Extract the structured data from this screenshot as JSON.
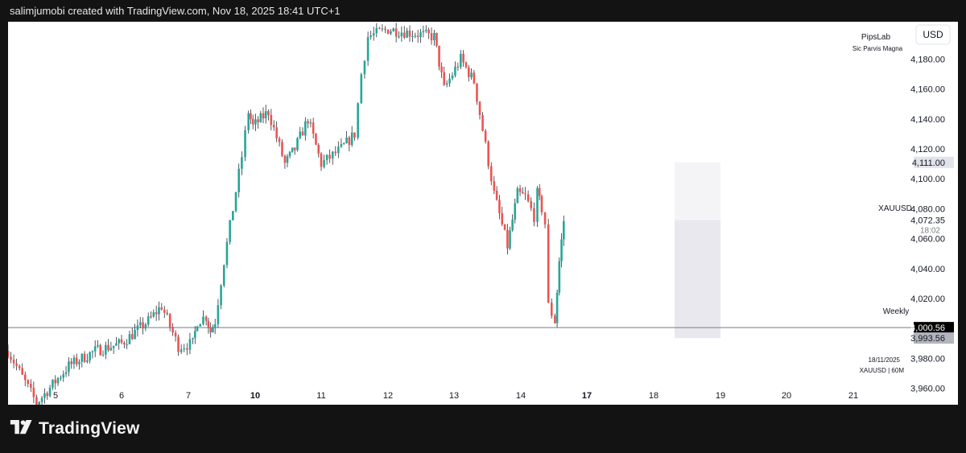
{
  "header": {
    "attribution": "salimjumobi created with TradingView.com, Nov 18, 2025 18:41 UTC+1"
  },
  "branding": {
    "logo_icon": "tradingview-logo-icon",
    "wordmark": "TradingView"
  },
  "watermark": {
    "name": "PipsLab",
    "slogan": "Sic Parvis Magna"
  },
  "currency_button": "USD",
  "symbol_label": "XAUUSD",
  "footer_info": {
    "date": "18/11/2025",
    "symbol_timeframe": "XAUUSD | 60M"
  },
  "colors": {
    "up": "#26a69a",
    "down": "#ef5350",
    "wick": "#2a2e39",
    "level": "#787b86",
    "box": "#e8e8ee"
  },
  "chart_data": {
    "type": "candlestick",
    "symbol": "XAUUSD",
    "timeframe": "60M",
    "y_axis": {
      "min": 3949,
      "max": 4205,
      "ticks": [
        4180,
        4160,
        4140,
        4120,
        4100,
        4080,
        4060,
        4040,
        4020,
        3980,
        3960
      ],
      "tick_labels": [
        "4,180.00",
        "4,160.00",
        "4,140.00",
        "4,120.00",
        "4,100.00",
        "4,080.00",
        "4,060.00",
        "4,040.00",
        "4,020.00",
        "3,980.00",
        "3,960.00"
      ]
    },
    "x_axis": {
      "ticks": [
        {
          "label": "5",
          "bold": false
        },
        {
          "label": "6",
          "bold": false
        },
        {
          "label": "7",
          "bold": false
        },
        {
          "label": "10",
          "bold": true
        },
        {
          "label": "11",
          "bold": false
        },
        {
          "label": "12",
          "bold": false
        },
        {
          "label": "13",
          "bold": false
        },
        {
          "label": "14",
          "bold": false
        },
        {
          "label": "17",
          "bold": true
        },
        {
          "label": "18",
          "bold": false
        },
        {
          "label": "19",
          "bold": false
        },
        {
          "label": "20",
          "bold": false
        },
        {
          "label": "21",
          "bold": false
        }
      ]
    },
    "price_tags": [
      {
        "label": "4,111.00",
        "value": 4111.0,
        "style": "box"
      },
      {
        "label": "4,072.35",
        "value": 4072.35,
        "style": "current",
        "sub": "18:02"
      },
      {
        "label": "4,000.56",
        "value": 4000.56,
        "style": "dark"
      },
      {
        "label": "3,993.56",
        "value": 3993.56,
        "style": "grey"
      }
    ],
    "horizontal_levels": [
      {
        "name": "Weekly",
        "value": 4000.56
      }
    ],
    "range_box": {
      "top": 4111.0,
      "bottom": 3993.56,
      "inner_top": 4072.35,
      "from_day": 18,
      "to_day": 19
    },
    "anchors": [
      {
        "day": 4.5,
        "price": 3985
      },
      {
        "day": 4.8,
        "price": 3950
      },
      {
        "day": 5.2,
        "price": 3975
      },
      {
        "day": 5.6,
        "price": 3985
      },
      {
        "day": 6.0,
        "price": 3990
      },
      {
        "day": 6.4,
        "price": 4005
      },
      {
        "day": 6.6,
        "price": 4015
      },
      {
        "day": 6.85,
        "price": 3988
      },
      {
        "day": 7.2,
        "price": 3990
      },
      {
        "day": 7.4,
        "price": 4005
      },
      {
        "day": 7.8,
        "price": 4008
      },
      {
        "day": 8.0,
        "price": 3998
      },
      {
        "day": 8.2,
        "price": 4005
      },
      {
        "day": 8.6,
        "price": 4045
      },
      {
        "day": 9.0,
        "price": 4080
      },
      {
        "day": 9.4,
        "price": 4115
      },
      {
        "day": 9.7,
        "price": 4145
      },
      {
        "day": 9.9,
        "price": 4135
      },
      {
        "day": 10.2,
        "price": 4145
      },
      {
        "day": 10.45,
        "price": 4110
      },
      {
        "day": 10.6,
        "price": 4120
      },
      {
        "day": 10.8,
        "price": 4140
      },
      {
        "day": 11.0,
        "price": 4110
      },
      {
        "day": 11.3,
        "price": 4120
      },
      {
        "day": 11.5,
        "price": 4130
      },
      {
        "day": 11.6,
        "price": 4170
      },
      {
        "day": 11.7,
        "price": 4195
      },
      {
        "day": 12.0,
        "price": 4200
      },
      {
        "day": 12.7,
        "price": 4195
      },
      {
        "day": 12.85,
        "price": 4160
      },
      {
        "day": 13.1,
        "price": 4180
      },
      {
        "day": 13.3,
        "price": 4165
      },
      {
        "day": 13.6,
        "price": 4090
      },
      {
        "day": 13.8,
        "price": 4055
      },
      {
        "day": 13.95,
        "price": 4090
      },
      {
        "day": 14.2,
        "price": 4088
      },
      {
        "day": 14.6,
        "price": 4075
      },
      {
        "day": 14.75,
        "price": 4090
      },
      {
        "day": 14.95,
        "price": 4080
      },
      {
        "day": 15.1,
        "price": 4070
      },
      {
        "day": 15.25,
        "price": 4015
      },
      {
        "day": 15.55,
        "price": 4005
      },
      {
        "day": 15.75,
        "price": 4045
      },
      {
        "day": 15.95,
        "price": 4072
      }
    ]
  }
}
